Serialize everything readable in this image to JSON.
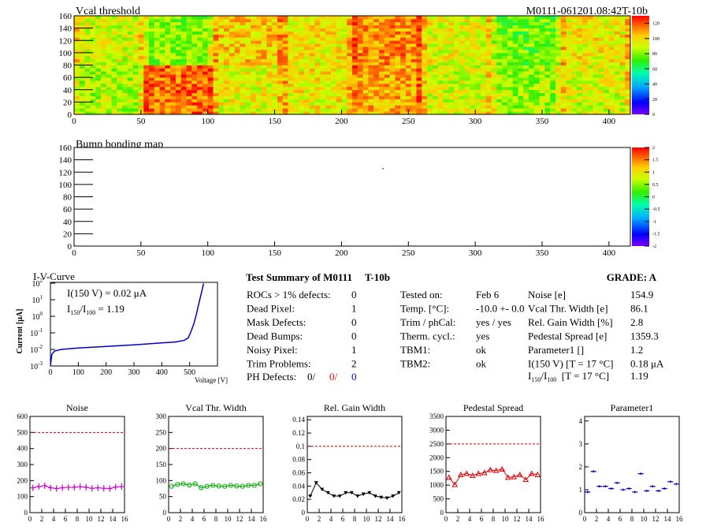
{
  "header": {
    "title": "Vcal threshold",
    "module_id": "M0111-061201.08:42T-10b"
  },
  "map_xticks": [
    "0",
    "50",
    "100",
    "150",
    "200",
    "250",
    "300",
    "350",
    "400"
  ],
  "map_yticks": [
    "0",
    "20",
    "40",
    "60",
    "80",
    "100",
    "120",
    "140",
    "160"
  ],
  "vcal_scale": [
    "0",
    "20",
    "40",
    "60",
    "80",
    "100",
    "120"
  ],
  "bump_title": "Bump bonding map",
  "bump_scale": [
    "-2",
    "-1.5",
    "-1",
    "-0.5",
    "0",
    "0.5",
    "1",
    "1.5",
    "2"
  ],
  "ivcurve": {
    "title": "I-V-Curve",
    "i150_text": "I(150 V) = 0.02 μA",
    "ratio_lhs": "I",
    "ratio_sub1": "150",
    "ratio_slash": "/I",
    "ratio_sub2": "100",
    "ratio_rhs": " =  1.19",
    "ylabel": "Current [μA]",
    "xlabel": "Voltage [V]",
    "xticks": [
      "0",
      "100",
      "200",
      "300",
      "400",
      "500"
    ],
    "yexp": [
      "-3",
      "-2",
      "-1",
      "0",
      "1",
      "2"
    ],
    "ybase": "10"
  },
  "summary": {
    "title": "Test Summary of M0111     T-10b",
    "grade": "GRADE:  A",
    "left": [
      {
        "label": "ROCs > 1% defects:",
        "value": "0"
      },
      {
        "label": "Dead Pixel:",
        "value": "1"
      },
      {
        "label": "Mask Defects:",
        "value": "0"
      },
      {
        "label": "Dead Bumps:",
        "value": "0"
      },
      {
        "label": "Noisy Pixel:",
        "value": "1"
      },
      {
        "label": "Trim Problems:",
        "value": "2"
      }
    ],
    "ph_label": "PH Defects:",
    "ph_values": [
      "0/",
      "0/",
      "0"
    ],
    "ph_colors": [
      "#000000",
      "#e00000",
      "#0000cc"
    ],
    "middle": [
      {
        "label": "Tested on:",
        "value": "Feb 6"
      },
      {
        "label": "Temp. [°C]:",
        "value": "-10.0 +- 0.0"
      },
      {
        "label": "Trim / phCal:",
        "value": "yes / yes"
      },
      {
        "label": "Therm. cycl.:",
        "value": "yes"
      },
      {
        "label": "TBM1:",
        "value": "ok"
      },
      {
        "label": "TBM2:",
        "value": "ok"
      }
    ],
    "right": [
      {
        "label": "Noise [e]",
        "value": "154.9"
      },
      {
        "label": "Vcal Thr. Width [e]",
        "value": "86.1"
      },
      {
        "label": "Rel. Gain Width [%]",
        "value": "2.8"
      },
      {
        "label": "Pedestal Spread [e]",
        "value": "1359.3"
      },
      {
        "label": "Parameter1 []",
        "value": "1.2"
      },
      {
        "label": "I(150 V) [T = 17 °C]",
        "value": "0.18 μA"
      }
    ],
    "ratio_row": {
      "prefix": "I",
      "sub1": "150",
      "mid": "/I",
      "sub2": "100",
      "suffix": "  [T = 17 °C]",
      "value": "1.19"
    }
  },
  "bottom_xticks": [
    "0",
    "2",
    "4",
    "6",
    "8",
    "10",
    "12",
    "14",
    "16"
  ],
  "chart_data": [
    {
      "type": "line",
      "title": "Noise",
      "color": "#cc00cc",
      "marker": "plus",
      "ylim": [
        0,
        600
      ],
      "yticks": [
        "0",
        "100",
        "200",
        "300",
        "400",
        "500",
        "600"
      ],
      "threshold": 500,
      "xlim": [
        0,
        16
      ],
      "values": [
        155,
        163,
        168,
        155,
        150,
        155,
        158,
        158,
        162,
        158,
        152,
        155,
        152,
        150,
        160,
        162
      ]
    },
    {
      "type": "line",
      "title": "Vcal Thr. Width",
      "color": "#00aa00",
      "marker": "circle",
      "ylim": [
        0,
        300
      ],
      "yticks": [
        "0",
        "50",
        "100",
        "150",
        "200",
        "250",
        "300"
      ],
      "threshold": 200,
      "xlim": [
        0,
        16
      ],
      "values": [
        82,
        88,
        90,
        86,
        90,
        78,
        82,
        85,
        83,
        82,
        85,
        83,
        82,
        85,
        85,
        90
      ]
    },
    {
      "type": "line",
      "title": "Rel. Gain Width",
      "color": "#000000",
      "marker": "tri-down",
      "ylim": [
        0,
        0.145
      ],
      "yticks": [
        "0",
        "0.02",
        "0.04",
        "0.06",
        "0.08",
        "0.1",
        "0.12",
        "0.14"
      ],
      "threshold": 0.1,
      "xlim": [
        0,
        16
      ],
      "values": [
        0.025,
        0.045,
        0.035,
        0.03,
        0.025,
        0.025,
        0.03,
        0.03,
        0.025,
        0.028,
        0.03,
        0.025,
        0.023,
        0.022,
        0.025,
        0.03
      ]
    },
    {
      "type": "line",
      "title": "Pedestal Spread",
      "color": "#dd0000",
      "marker": "tri-up",
      "ylim": [
        0,
        3500
      ],
      "yticks": [
        "0",
        "500",
        "1000",
        "1500",
        "2000",
        "2500",
        "3000",
        "3500"
      ],
      "threshold": 2500,
      "xlim": [
        0,
        16
      ],
      "values": [
        1280,
        1020,
        1380,
        1420,
        1350,
        1420,
        1450,
        1560,
        1530,
        1580,
        1280,
        1300,
        1380,
        1200,
        1420,
        1380
      ]
    },
    {
      "type": "scatter",
      "title": "Parameter1",
      "color": "#0000cc",
      "marker": "hbar",
      "ylim": [
        0,
        4.2
      ],
      "yticks": [
        "0",
        "1",
        "2",
        "3",
        "4"
      ],
      "threshold": null,
      "xlim": [
        0,
        16
      ],
      "values": [
        0.9,
        1.8,
        1.15,
        1.15,
        1.05,
        1.3,
        1.0,
        1.05,
        0.9,
        1.7,
        0.95,
        1.15,
        0.95,
        1.05,
        1.35,
        1.25
      ]
    }
  ]
}
